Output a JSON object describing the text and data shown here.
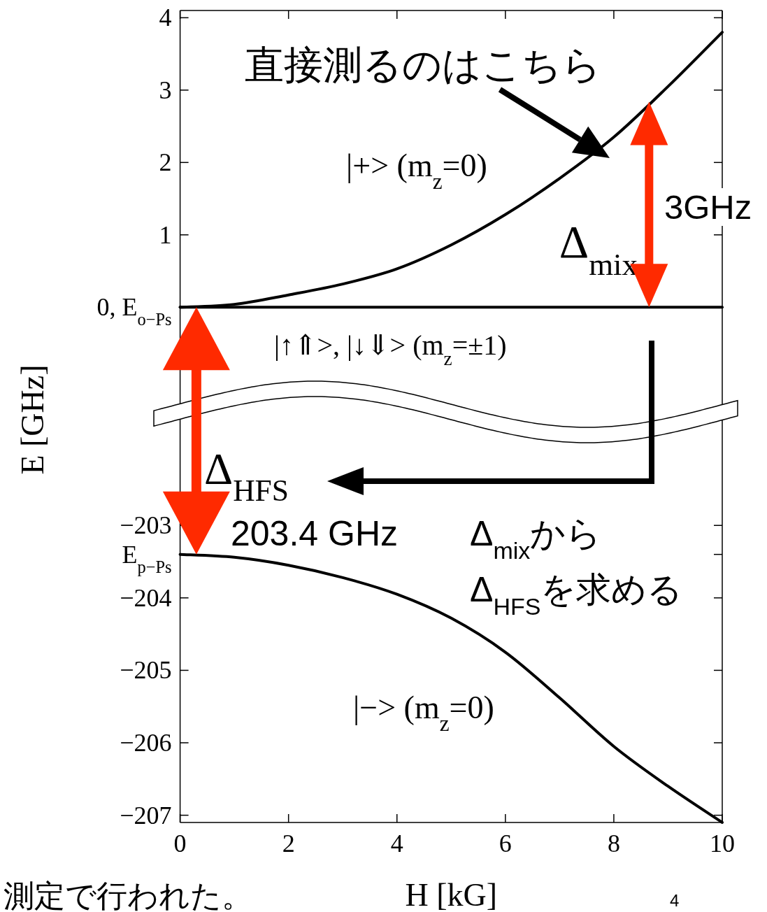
{
  "chart_data": [
    {
      "type": "line",
      "xlim": [
        0,
        10
      ],
      "ylim": [
        -1.36,
        4.1
      ],
      "xticks": [
        0,
        2,
        4,
        6,
        8,
        10
      ],
      "yticks": [
        {
          "value": 0,
          "label": "0, E$_{o−Ps}$"
        },
        1,
        2,
        3,
        4
      ],
      "tick_labels": "y",
      "ylabel": "E [GHz]",
      "x": [
        0,
        1,
        2,
        3,
        4,
        5,
        6,
        7,
        8,
        9,
        10
      ],
      "series": [
        {
          "name": "|+>  (m$_{z}$=0)",
          "color": "#000000",
          "values": [
            0,
            0.04,
            0.17,
            0.32,
            0.53,
            0.86,
            1.28,
            1.78,
            2.35,
            3.05,
            3.8
          ]
        },
        {
          "name": "|↑⇑>, |↓⇓>  (m$_{z}$=±1)",
          "color": "#000000",
          "values": [
            0,
            0,
            0,
            0,
            0,
            0,
            0,
            0,
            0,
            0,
            0
          ]
        }
      ],
      "annotations": [
        "直接測るのはこちら",
        "3GHz",
        {
          "text": "Δ$_{mix}$",
          "x": 8.65,
          "y": 2.84
        }
      ]
    },
    {
      "type": "line",
      "xlim": [
        0,
        10
      ],
      "ylim": [
        -207.1,
        -201.54
      ],
      "xticks": [
        0,
        2,
        4,
        6,
        8,
        10
      ],
      "yticks": [
        -203,
        {
          "value": -203.4,
          "label": "E$_{p−Ps}$"
        },
        -204,
        -205,
        -206,
        -207
      ],
      "xlabel": "H [kG]",
      "x": [
        0,
        1,
        2,
        3,
        4,
        5,
        6,
        7,
        8,
        9,
        10
      ],
      "series": [
        {
          "name": "|−>  (m$_{z}$=0)",
          "color": "#000000",
          "values": [
            -203.4,
            -203.44,
            -203.55,
            -203.72,
            -203.95,
            -204.28,
            -204.75,
            -205.38,
            -206.05,
            -206.6,
            -207.1
          ]
        }
      ],
      "annotations": [
        {
          "text": "Δ$_{HFS}$",
          "x": 0.3,
          "y": -203.4
        },
        "203.4 GHz",
        "Δ$_{mix}$から",
        "Δ$_{HFS}$を求める",
        "測定で行われた。",
        "4"
      ]
    }
  ]
}
